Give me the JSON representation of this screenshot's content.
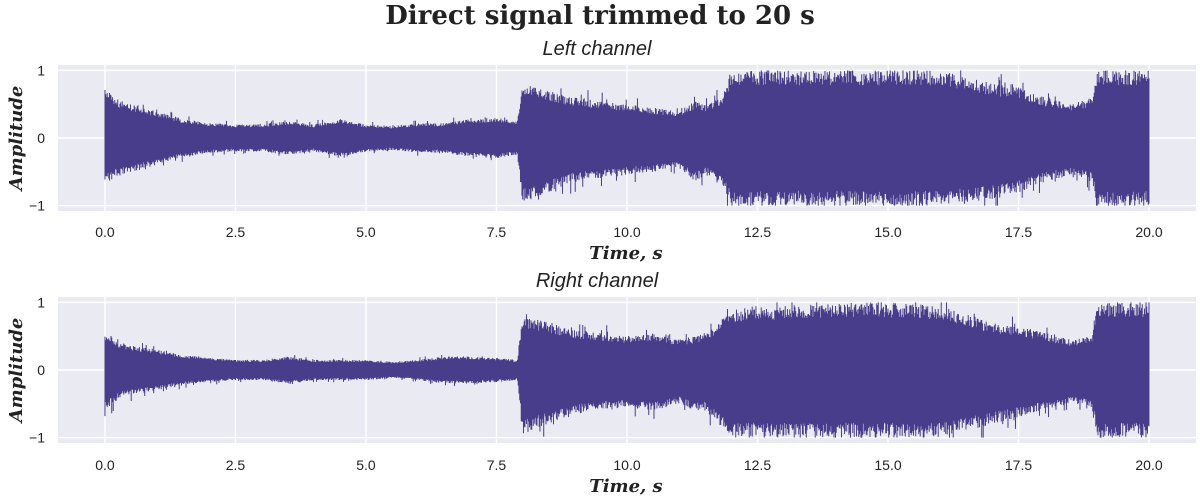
{
  "figure": {
    "suptitle": "Direct signal trimmed to 20 s"
  },
  "chart_data": [
    {
      "type": "line",
      "title": "Left channel",
      "xlabel": "Time, s",
      "ylabel": "Amplitude",
      "xlim": [
        -0.9,
        20.9
      ],
      "ylim": [
        -1.08,
        1.08
      ],
      "xticks": [
        0.0,
        2.5,
        5.0,
        7.5,
        10.0,
        12.5,
        15.0,
        17.5,
        20.0
      ],
      "xtick_labels": [
        "0.0",
        "2.5",
        "5.0",
        "7.5",
        "10.0",
        "12.5",
        "15.0",
        "17.5",
        "20.0"
      ],
      "yticks": [
        1,
        0,
        -1
      ],
      "ytick_labels": [
        "1",
        "0",
        "−1"
      ],
      "grid": true,
      "color": "#483d8b",
      "envelope": {
        "t": [
          0.0,
          0.3,
          1.0,
          1.5,
          2.0,
          2.5,
          3.0,
          3.5,
          4.0,
          4.5,
          5.0,
          5.5,
          6.0,
          6.5,
          7.0,
          7.5,
          7.9,
          8.0,
          8.5,
          9.0,
          9.5,
          10.0,
          10.5,
          11.0,
          11.3,
          11.5,
          11.8,
          12.0,
          12.5,
          13.0,
          14.0,
          15.0,
          16.0,
          17.0,
          17.5,
          18.0,
          18.5,
          18.9,
          19.0,
          19.5,
          20.0
        ],
        "upper": [
          0.72,
          0.55,
          0.4,
          0.28,
          0.22,
          0.2,
          0.2,
          0.25,
          0.2,
          0.28,
          0.2,
          0.18,
          0.22,
          0.22,
          0.28,
          0.3,
          0.25,
          0.8,
          0.7,
          0.6,
          0.55,
          0.5,
          0.45,
          0.4,
          0.55,
          0.5,
          0.6,
          1.0,
          1.0,
          1.0,
          1.0,
          1.0,
          1.0,
          0.8,
          0.75,
          0.6,
          0.5,
          0.6,
          1.0,
          1.0,
          1.0
        ],
        "lower": [
          -0.68,
          -0.55,
          -0.4,
          -0.28,
          -0.22,
          -0.2,
          -0.2,
          -0.25,
          -0.2,
          -0.28,
          -0.2,
          -0.18,
          -0.22,
          -0.22,
          -0.28,
          -0.3,
          -0.25,
          -0.95,
          -0.8,
          -0.65,
          -0.6,
          -0.55,
          -0.5,
          -0.45,
          -0.65,
          -0.55,
          -0.7,
          -1.0,
          -1.0,
          -1.0,
          -1.0,
          -1.0,
          -1.0,
          -0.9,
          -0.8,
          -0.65,
          -0.55,
          -0.65,
          -1.0,
          -1.0,
          -1.0
        ]
      }
    },
    {
      "type": "line",
      "title": "Right channel",
      "xlabel": "Time, s",
      "ylabel": "Amplitude",
      "xlim": [
        -0.9,
        20.9
      ],
      "ylim": [
        -1.08,
        1.08
      ],
      "xticks": [
        0.0,
        2.5,
        5.0,
        7.5,
        10.0,
        12.5,
        15.0,
        17.5,
        20.0
      ],
      "xtick_labels": [
        "0.0",
        "2.5",
        "5.0",
        "7.5",
        "10.0",
        "12.5",
        "15.0",
        "17.5",
        "20.0"
      ],
      "yticks": [
        1,
        0,
        -1
      ],
      "ytick_labels": [
        "1",
        "0",
        "−1"
      ],
      "grid": true,
      "color": "#483d8b",
      "envelope": {
        "t": [
          0.0,
          0.3,
          1.0,
          1.5,
          2.0,
          2.5,
          3.0,
          3.5,
          4.0,
          4.5,
          5.0,
          5.5,
          6.0,
          6.5,
          7.0,
          7.5,
          7.9,
          8.0,
          8.5,
          9.0,
          9.5,
          10.0,
          10.5,
          11.0,
          11.3,
          11.5,
          11.8,
          12.0,
          12.5,
          13.0,
          14.0,
          15.0,
          16.0,
          17.0,
          17.5,
          18.0,
          18.5,
          18.9,
          19.0,
          19.5,
          20.0
        ],
        "upper": [
          0.55,
          0.4,
          0.3,
          0.22,
          0.18,
          0.15,
          0.15,
          0.2,
          0.15,
          0.15,
          0.15,
          0.12,
          0.15,
          0.2,
          0.2,
          0.18,
          0.15,
          0.8,
          0.7,
          0.6,
          0.55,
          0.5,
          0.55,
          0.45,
          0.5,
          0.55,
          0.75,
          0.9,
          0.95,
          0.95,
          1.0,
          1.0,
          0.95,
          0.7,
          0.65,
          0.55,
          0.45,
          0.5,
          1.0,
          1.0,
          1.0
        ],
        "lower": [
          -0.6,
          -0.4,
          -0.3,
          -0.22,
          -0.18,
          -0.15,
          -0.15,
          -0.2,
          -0.15,
          -0.15,
          -0.15,
          -0.12,
          -0.15,
          -0.2,
          -0.2,
          -0.18,
          -0.15,
          -0.95,
          -0.8,
          -0.65,
          -0.6,
          -0.55,
          -0.6,
          -0.5,
          -0.6,
          -0.6,
          -0.85,
          -1.0,
          -1.0,
          -1.0,
          -1.0,
          -1.0,
          -1.0,
          -0.8,
          -0.7,
          -0.6,
          -0.5,
          -0.55,
          -1.0,
          -1.0,
          -1.0
        ]
      }
    }
  ]
}
